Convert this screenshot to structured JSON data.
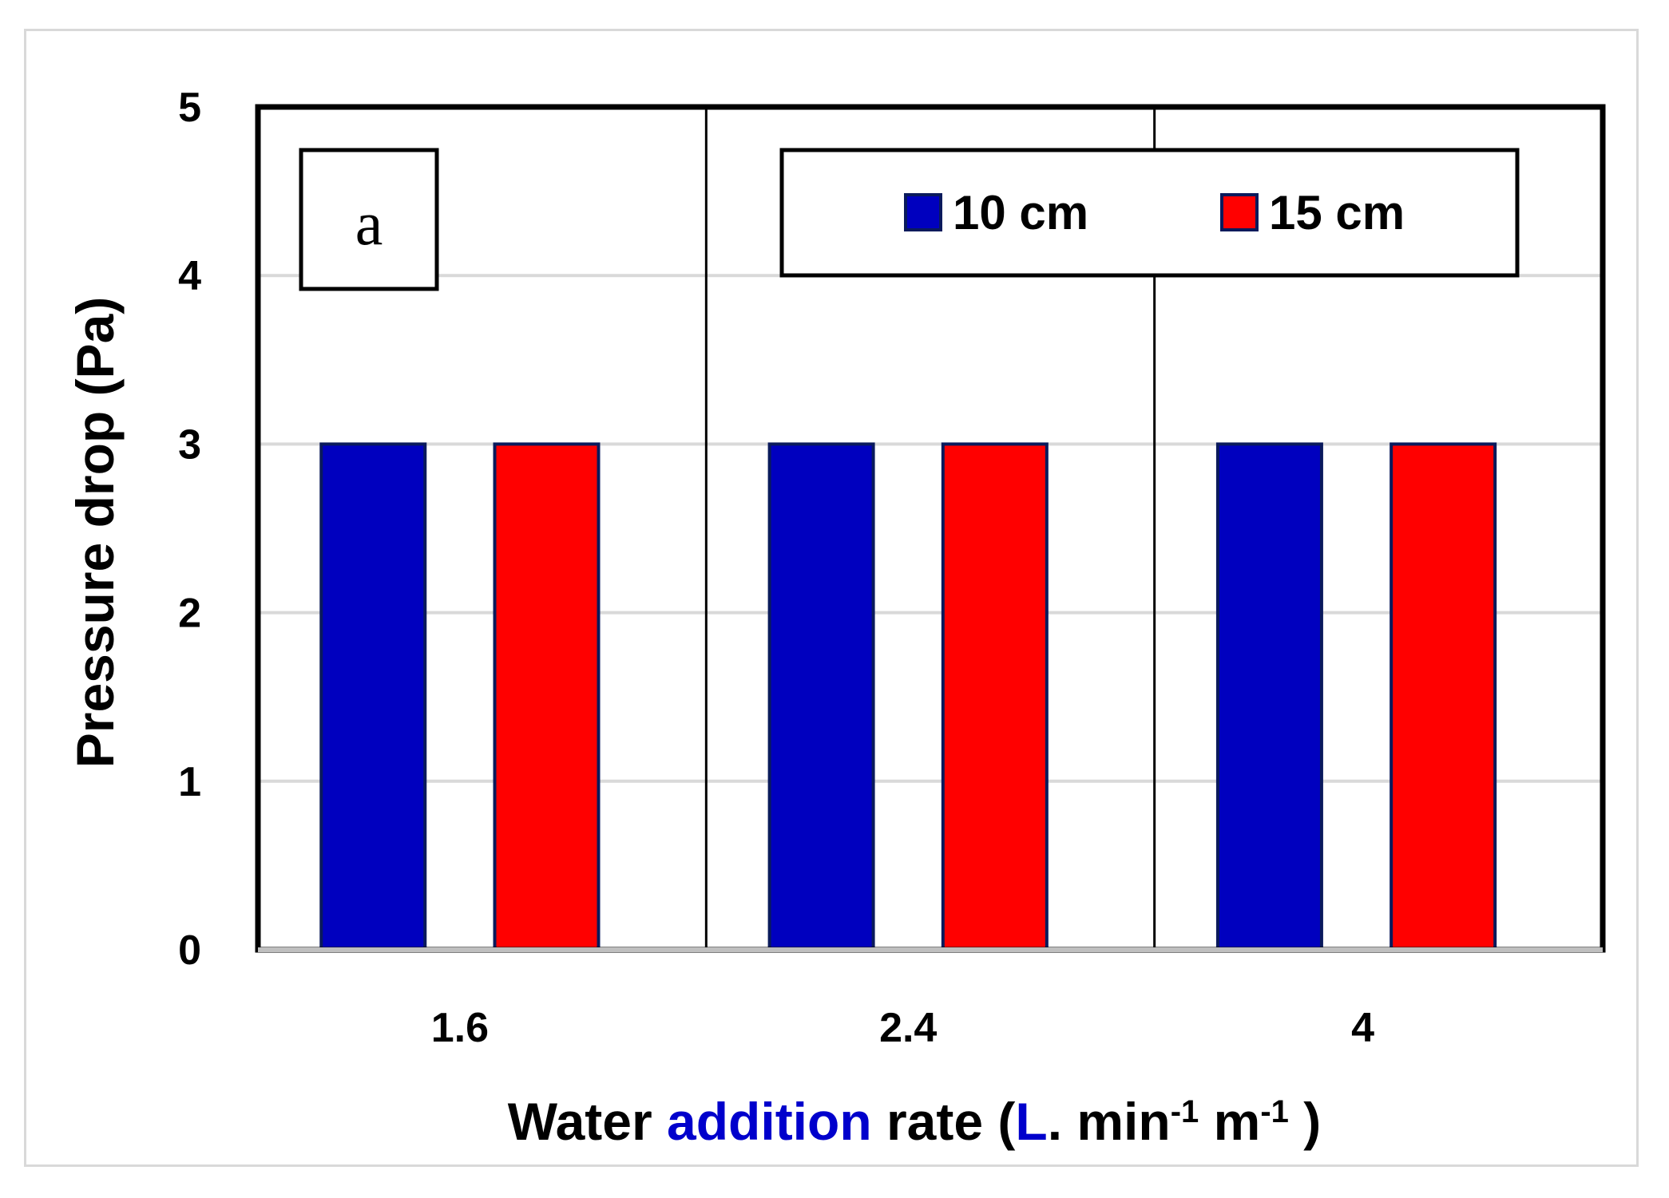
{
  "chart_data": {
    "type": "bar",
    "panel_label": "a",
    "categories": [
      "1.6",
      "2.4",
      "4"
    ],
    "series": [
      {
        "name": "10 cm",
        "values": [
          3,
          3,
          3
        ],
        "color": "#0000bf"
      },
      {
        "name": "15 cm",
        "values": [
          3,
          3,
          3
        ],
        "color": "#ff0000"
      }
    ],
    "ylabel": "Pressure drop (Pa)",
    "xlabel": {
      "parts": [
        {
          "text": "Water ",
          "color": "#000000"
        },
        {
          "text": "addition",
          "color": "#0000cc"
        },
        {
          "text": " rate (",
          "color": "#000000"
        },
        {
          "text": "L",
          "color": "#0000cc"
        },
        {
          "text": ". min",
          "color": "#000000"
        },
        {
          "text": "-1",
          "color": "#000000",
          "sup": true
        },
        {
          "text": " m",
          "color": "#000000"
        },
        {
          "text": "-1",
          "color": "#000000",
          "sup": true
        },
        {
          "text": " )",
          "color": "#000000"
        }
      ]
    },
    "ylim": [
      0,
      5
    ],
    "yticks": [
      "0",
      "1",
      "2",
      "3",
      "4",
      "5"
    ],
    "grid": true,
    "legend_position": "top-right",
    "bar_edge_color": "#0a1a5c",
    "grid_color": "#d9d9d9"
  }
}
